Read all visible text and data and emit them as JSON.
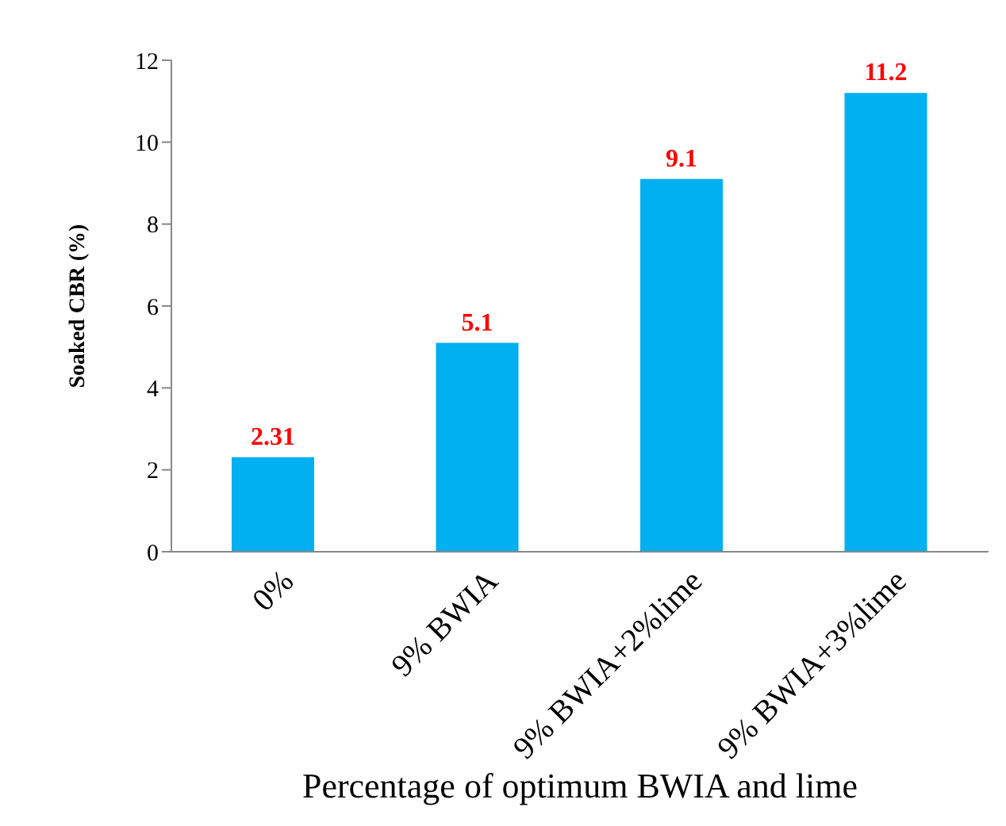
{
  "chart_data": {
    "type": "bar",
    "xlabel": "Percentage of optimum BWIA and lime",
    "ylabel": "Soaked CBR (%)",
    "categories": [
      "0%",
      "9% BWIA",
      "9% BWIA+2%lime",
      "9% BWIA+3%lime"
    ],
    "values": [
      2.31,
      5.1,
      9.1,
      11.2
    ],
    "color": "#00b0f0",
    "value_labels": [
      "2.31",
      "5.1",
      "9.1",
      "11.2"
    ],
    "ylim": [
      0,
      12
    ],
    "yticks": [
      0,
      2,
      4,
      6,
      8,
      10,
      12
    ],
    "grid": false
  }
}
